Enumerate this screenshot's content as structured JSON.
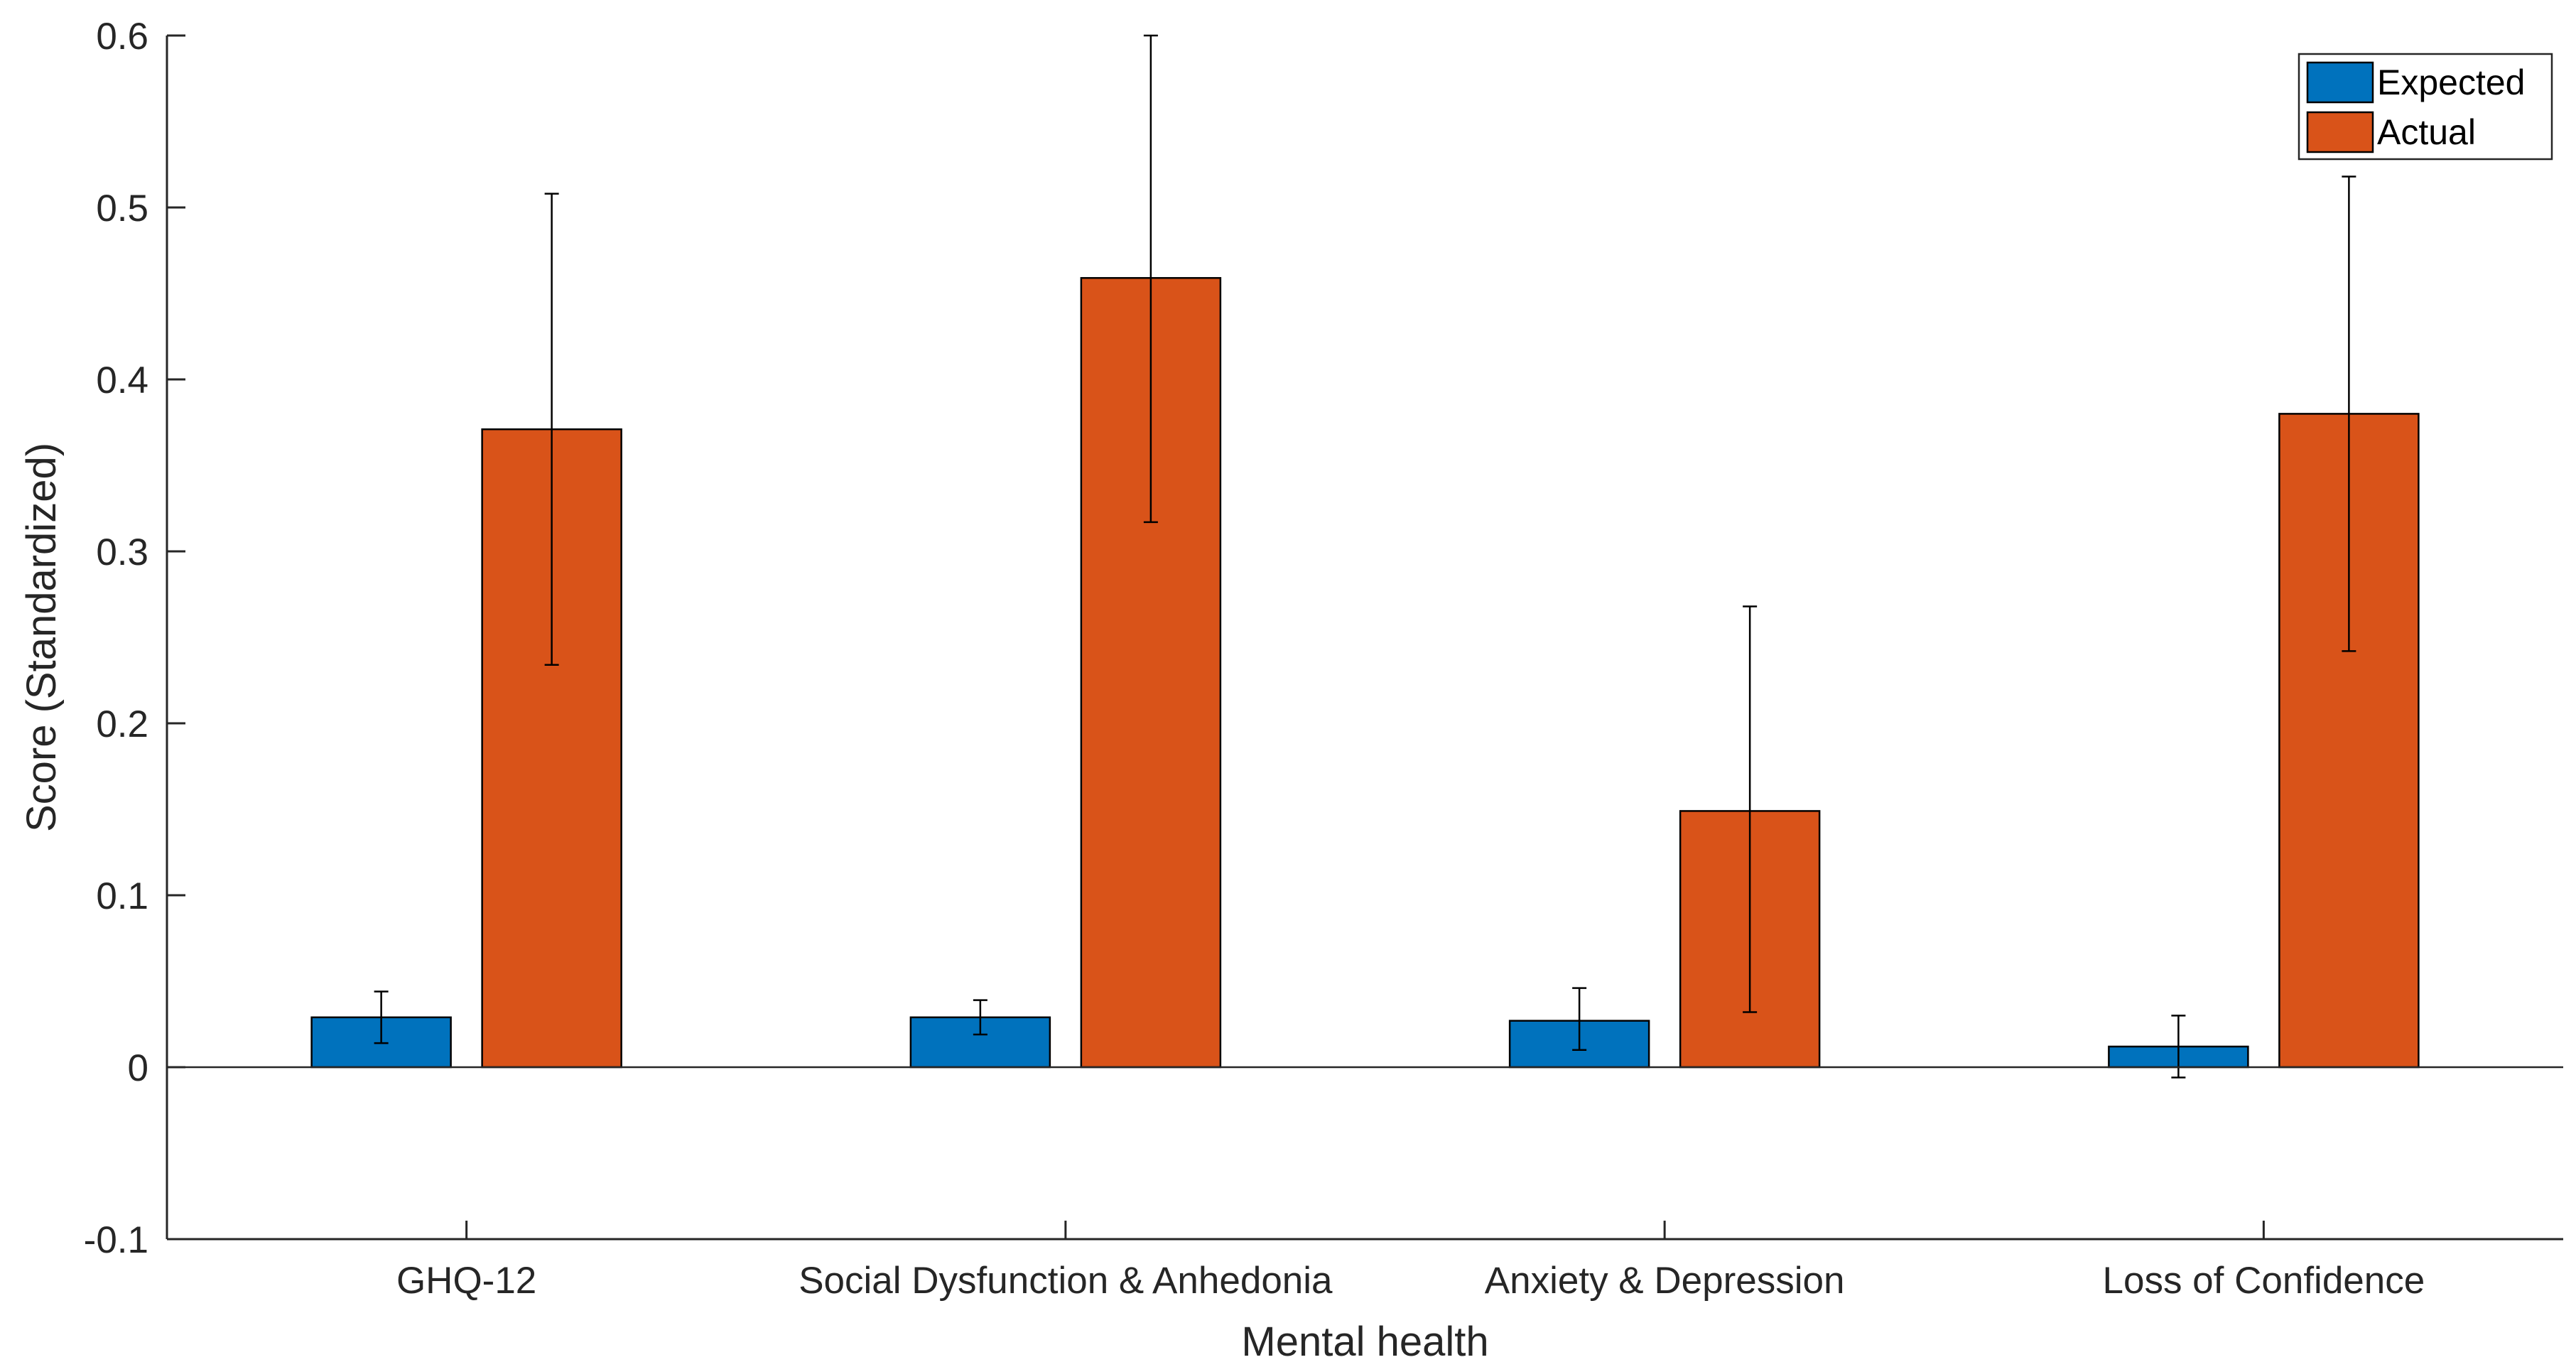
{
  "chart_data": {
    "type": "bar",
    "xlabel": "Mental health",
    "ylabel": "Score (Standardized)",
    "ylim": [
      -0.1,
      0.6
    ],
    "yticks": [
      "-0.1",
      "0",
      "0.1",
      "0.2",
      "0.3",
      "0.4",
      "0.5",
      "0.6"
    ],
    "categories": [
      "GHQ-12",
      "Social Dysfunction & Anhedonia",
      "Anxiety & Depression",
      "Loss of Confidence"
    ],
    "series": [
      {
        "name": "Expected",
        "color": "#0072BD",
        "values": [
          0.029,
          0.029,
          0.027,
          0.012
        ],
        "err_low": [
          0.014,
          0.019,
          0.01,
          -0.006
        ],
        "err_high": [
          0.044,
          0.039,
          0.046,
          0.03
        ]
      },
      {
        "name": "Actual",
        "color": "#D95319",
        "values": [
          0.371,
          0.459,
          0.149,
          0.38
        ],
        "err_low": [
          0.234,
          0.317,
          0.032,
          0.242
        ],
        "err_high": [
          0.508,
          0.6,
          0.268,
          0.518
        ]
      }
    ],
    "legend_position": "top-right",
    "grid": false
  }
}
